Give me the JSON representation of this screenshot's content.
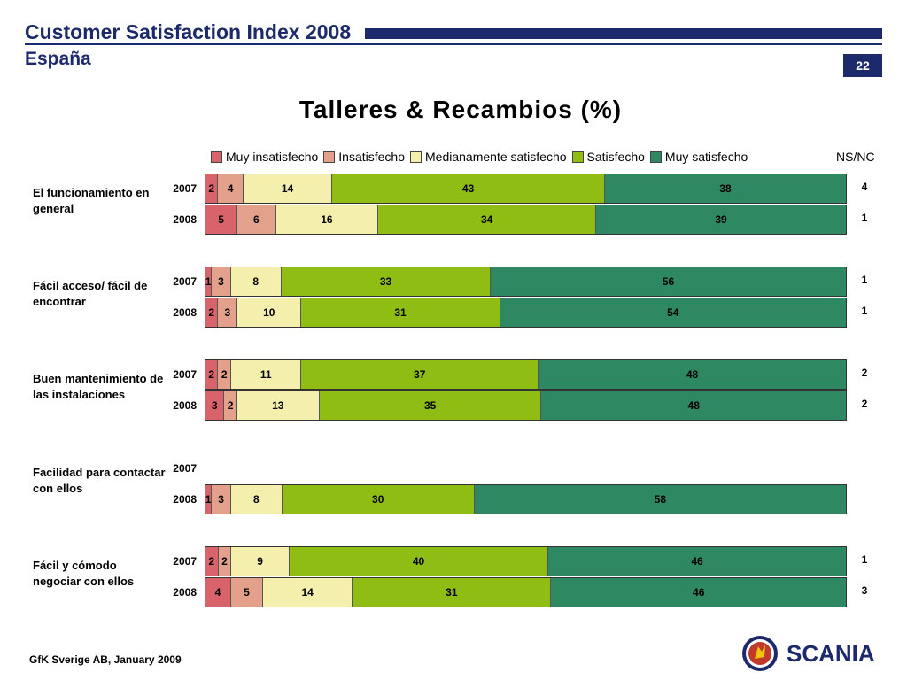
{
  "header": {
    "title": "Customer Satisfaction Index 2008",
    "subtitle": "España",
    "page_number": "22"
  },
  "footer": {
    "source": "GfK Sverige AB, January 2009"
  },
  "logo": {
    "brand": "SCANIA",
    "icon": "scania-griffin-icon"
  },
  "colors": {
    "brand_navy": "#1c2a6b",
    "muy_insatisfecho": "#d9636b",
    "insatisfecho": "#e3a08a",
    "medianamente_satisfecho": "#f4efac",
    "satisfecho": "#8fbd14",
    "muy_satisfecho": "#2e8862"
  },
  "chart_data": {
    "type": "bar",
    "orientation": "horizontal-stacked-100",
    "title": "Talleres & Recambios (%)",
    "legend_position": "top",
    "series": [
      {
        "name": "Muy insatisfecho",
        "color": "#d9636b"
      },
      {
        "name": "Insatisfecho",
        "color": "#e3a08a"
      },
      {
        "name": "Medianamente satisfecho",
        "color": "#f4efac"
      },
      {
        "name": "Satisfecho",
        "color": "#8fbd14"
      },
      {
        "name": "Muy satisfecho",
        "color": "#2e8862"
      }
    ],
    "nsnc_label": "NS/NC",
    "groups": [
      {
        "question": "El funcionamiento en general",
        "rows": [
          {
            "year": "2007",
            "values": [
              2,
              4,
              14,
              43,
              38
            ],
            "nsnc": "4"
          },
          {
            "year": "2008",
            "values": [
              5,
              6,
              16,
              34,
              39
            ],
            "nsnc": "1"
          }
        ]
      },
      {
        "question": "Fácil acceso/ fácil de encontrar",
        "rows": [
          {
            "year": "2007",
            "values": [
              1,
              3,
              8,
              33,
              56
            ],
            "nsnc": "1"
          },
          {
            "year": "2008",
            "values": [
              2,
              3,
              10,
              31,
              54
            ],
            "nsnc": "1"
          }
        ]
      },
      {
        "question": "Buen mantenimiento de las instalaciones",
        "rows": [
          {
            "year": "2007",
            "values": [
              2,
              2,
              11,
              37,
              48
            ],
            "nsnc": "2"
          },
          {
            "year": "2008",
            "values": [
              3,
              2,
              13,
              35,
              48
            ],
            "nsnc": "2"
          }
        ]
      },
      {
        "question": "Facilidad para contactar con ellos",
        "rows": [
          {
            "year": "2007",
            "values": null,
            "nsnc": ""
          },
          {
            "year": "2008",
            "values": [
              1,
              3,
              8,
              30,
              58
            ],
            "nsnc": ""
          }
        ]
      },
      {
        "question": "Fácil y cómodo negociar con ellos",
        "rows": [
          {
            "year": "2007",
            "values": [
              2,
              2,
              9,
              40,
              46
            ],
            "nsnc": "1"
          },
          {
            "year": "2008",
            "values": [
              4,
              5,
              14,
              31,
              46
            ],
            "nsnc": "3"
          }
        ]
      }
    ]
  }
}
